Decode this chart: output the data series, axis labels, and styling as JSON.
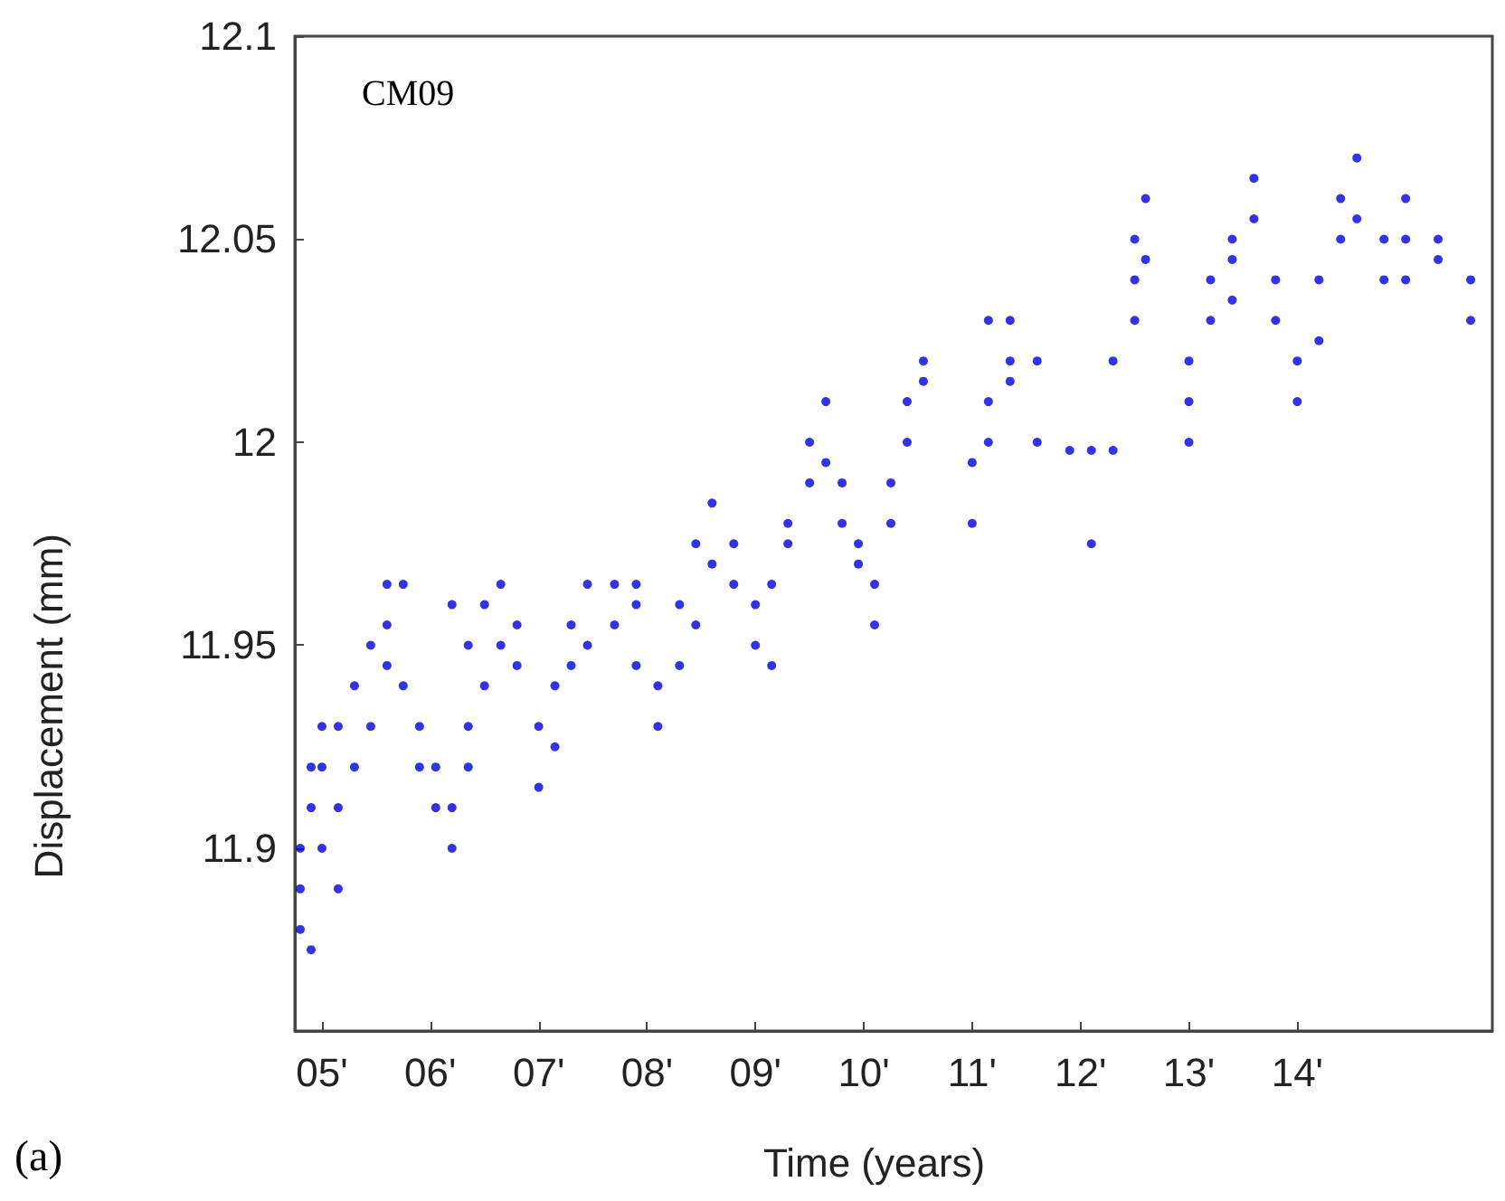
{
  "chart_data": {
    "type": "scatter",
    "xlabel": "Time (years)",
    "ylabel": "Displacement (mm)",
    "annotations": [
      "CM09",
      "(a)"
    ],
    "xlim": [
      4.75,
      15.8
    ],
    "ylim": [
      11.855,
      12.1
    ],
    "xticks": [
      {
        "value": 5,
        "label": "05'"
      },
      {
        "value": 6,
        "label": "06'"
      },
      {
        "value": 7,
        "label": "07'"
      },
      {
        "value": 8,
        "label": "08'"
      },
      {
        "value": 9,
        "label": "09'"
      },
      {
        "value": 10,
        "label": "10'"
      },
      {
        "value": 11,
        "label": "11'"
      },
      {
        "value": 12,
        "label": "12'"
      },
      {
        "value": 13,
        "label": "13'"
      },
      {
        "value": 14,
        "label": "14'"
      }
    ],
    "yticks": [
      11.9,
      11.95,
      12,
      12.05,
      12.1
    ],
    "grid": false,
    "marker": "circle",
    "series": [
      {
        "color": "#0000e0",
        "x": [
          4.8,
          4.8,
          4.8,
          4.9,
          4.9,
          4.9,
          5.0,
          5.0,
          5.0,
          5.15,
          5.15,
          5.15,
          5.3,
          5.3,
          5.45,
          5.45,
          5.6,
          5.6,
          5.6,
          5.75,
          5.75,
          5.9,
          5.9,
          6.05,
          6.05,
          6.2,
          6.2,
          6.2,
          6.35,
          6.35,
          6.35,
          6.5,
          6.5,
          6.65,
          6.65,
          6.8,
          6.8,
          7.0,
          7.0,
          7.15,
          7.15,
          7.3,
          7.3,
          7.45,
          7.45,
          7.7,
          7.7,
          7.9,
          7.9,
          7.9,
          8.1,
          8.1,
          8.3,
          8.3,
          8.45,
          8.45,
          8.6,
          8.6,
          8.8,
          8.8,
          9.0,
          9.0,
          9.15,
          9.15,
          9.3,
          9.3,
          9.5,
          9.5,
          9.65,
          9.65,
          9.8,
          9.8,
          9.95,
          9.95,
          10.1,
          10.1,
          10.25,
          10.25,
          10.4,
          10.4,
          10.55,
          10.55,
          11.0,
          11.0,
          11.15,
          11.15,
          11.15,
          11.35,
          11.35,
          11.35,
          11.6,
          11.6,
          11.9,
          12.1,
          12.1,
          12.3,
          12.3,
          12.5,
          12.5,
          12.5,
          12.6,
          12.6,
          13.0,
          13.0,
          13.0,
          13.2,
          13.2,
          13.4,
          13.4,
          13.4,
          13.6,
          13.6,
          13.8,
          13.8,
          14.0,
          14.0,
          14.2,
          14.2,
          14.4,
          14.4,
          14.55,
          14.55,
          14.8,
          14.8,
          15.0,
          15.0,
          15.0,
          15.3,
          15.3,
          15.6,
          15.6
        ],
        "values": [
          11.88,
          11.9,
          11.89,
          11.875,
          11.91,
          11.92,
          11.93,
          11.9,
          11.92,
          11.89,
          11.91,
          11.93,
          11.94,
          11.92,
          11.95,
          11.93,
          11.965,
          11.945,
          11.955,
          11.965,
          11.94,
          11.93,
          11.92,
          11.91,
          11.92,
          11.9,
          11.91,
          11.96,
          11.93,
          11.92,
          11.95,
          11.94,
          11.96,
          11.965,
          11.95,
          11.955,
          11.945,
          11.93,
          11.915,
          11.94,
          11.925,
          11.955,
          11.945,
          11.965,
          11.95,
          11.955,
          11.965,
          11.945,
          11.96,
          11.965,
          11.93,
          11.94,
          11.945,
          11.96,
          11.975,
          11.955,
          11.985,
          11.97,
          11.975,
          11.965,
          11.95,
          11.96,
          11.945,
          11.965,
          11.975,
          11.98,
          11.99,
          12.0,
          12.01,
          11.995,
          11.99,
          11.98,
          11.97,
          11.975,
          11.955,
          11.965,
          11.98,
          11.99,
          12.0,
          12.01,
          12.02,
          12.015,
          11.98,
          11.995,
          12.0,
          12.01,
          12.03,
          12.02,
          12.03,
          12.015,
          12.0,
          12.02,
          11.998,
          11.998,
          11.975,
          11.998,
          12.02,
          12.03,
          12.04,
          12.05,
          12.06,
          12.045,
          12.0,
          12.01,
          12.02,
          12.03,
          12.04,
          12.045,
          12.05,
          12.035,
          12.065,
          12.055,
          12.04,
          12.03,
          12.02,
          12.01,
          12.025,
          12.04,
          12.05,
          12.06,
          12.07,
          12.055,
          12.05,
          12.04,
          12.04,
          12.05,
          12.06,
          12.05,
          12.045,
          12.04,
          12.03
        ]
      }
    ]
  }
}
